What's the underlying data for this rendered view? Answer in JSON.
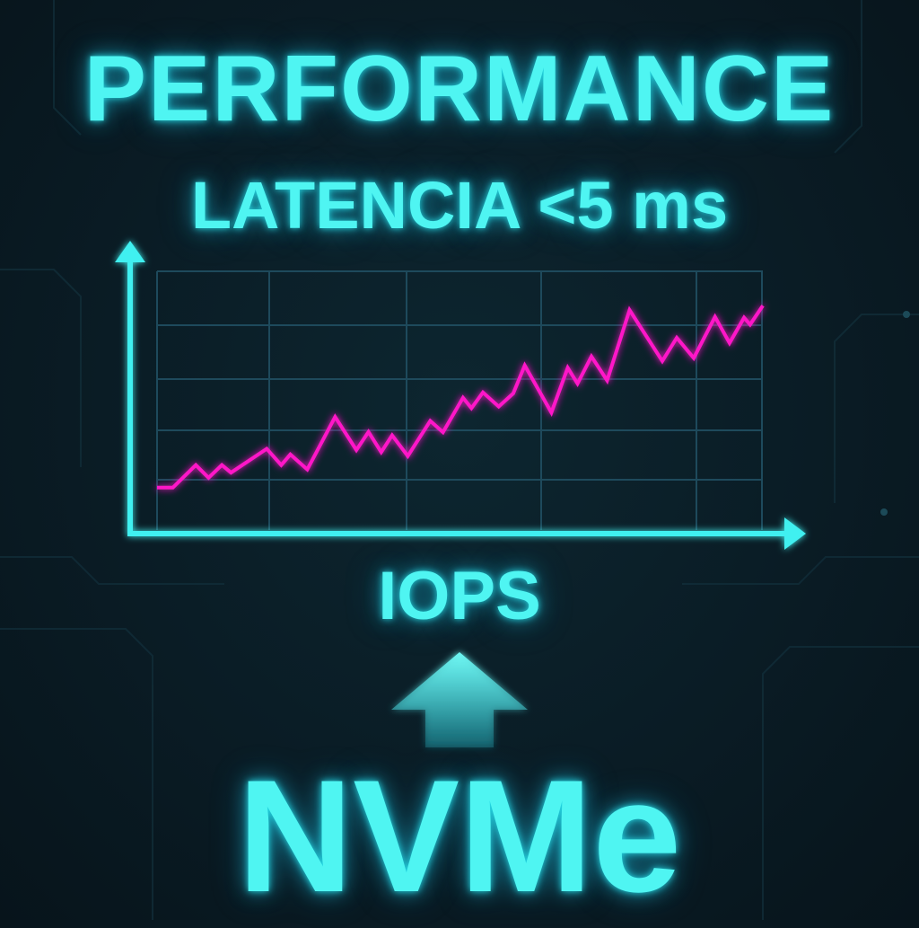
{
  "title": "PERFORMANCE",
  "subtitle": "LATENCIA <5 ms",
  "brand": "NVMe",
  "icons": {
    "up_arrow": "arrow-up-icon"
  },
  "colors": {
    "text": "#4ff5f2",
    "axis": "#3ff0f0",
    "line": "#ff19c8",
    "grid": "#1e4a5c",
    "background": "#0a1c25"
  },
  "chart_data": {
    "type": "line",
    "title": "",
    "xlabel": "IOPS",
    "ylabel": "",
    "grid": true,
    "xlim": [
      0,
      100
    ],
    "ylim": [
      0,
      100
    ],
    "series": [
      {
        "x": [
          0,
          2.6,
          6.4,
          8.5,
          10.7,
          12.2,
          18.1,
          20.5,
          22.0,
          24.8,
          29.4,
          32.9,
          34.9,
          37.0,
          38.8,
          41.4,
          45.1,
          47.2,
          50.5,
          51.9,
          53.8,
          56.4,
          58.8,
          60.7,
          65.1,
          67.8,
          69.4,
          71.7,
          74.3,
          78.0,
          83.4,
          85.8,
          88.6,
          92.1,
          94.5,
          96.9,
          97.9,
          100
        ],
        "values": [
          16.4,
          16.4,
          25.1,
          20.2,
          25.1,
          22.2,
          31.4,
          25.1,
          29.2,
          23.4,
          43.7,
          30.9,
          37.9,
          30.1,
          36.6,
          28.6,
          42.2,
          37.8,
          51.1,
          47.1,
          53.2,
          47.7,
          52.8,
          63.6,
          45.4,
          62.7,
          56.6,
          67.1,
          57.8,
          85.0,
          65.3,
          74.3,
          66.5,
          82.4,
          72.3,
          82.1,
          79.4,
          86.7
        ]
      }
    ]
  }
}
